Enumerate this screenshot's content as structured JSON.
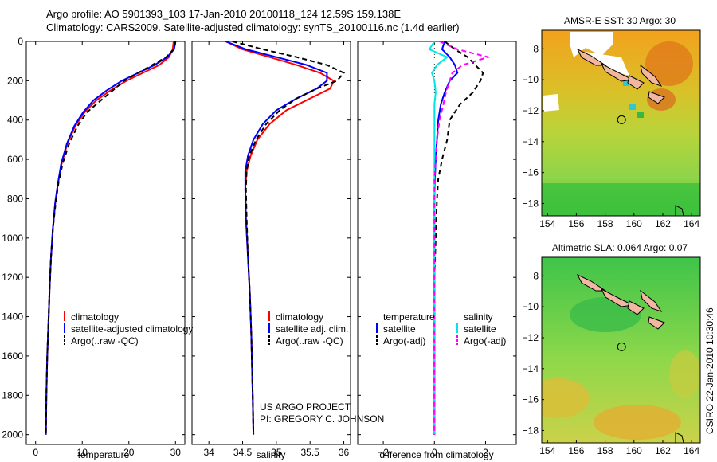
{
  "header": {
    "line1": "Argo profile: AO 5901393_103 17-Jan-2010 20100118_124 12.59S 159.138E",
    "line2": "Climatology: CARS2009. Satellite-adjusted climatology: synTS_20100116.nc (1.4d earlier)"
  },
  "footer": {
    "project_line1": "US ARGO PROJECT",
    "project_line2": "PI: GREGORY C. JOHNSON",
    "stamp": "CSIRO 22-Jan-2010 10:30:46"
  },
  "colors": {
    "climatology": "#ff0000",
    "satellite": "#0000ff",
    "argo": "#000000",
    "sal_satellite": "#00e5e5",
    "sal_argo": "#ff00ff"
  },
  "chart_data": [
    {
      "type": "line",
      "xlabel": "temperature",
      "ylabel": "",
      "xlim": [
        -2,
        32
      ],
      "ylim": [
        0,
        2050
      ],
      "y_reversed": true,
      "xticks": [
        0,
        10,
        20,
        30
      ],
      "yticks": [
        0,
        200,
        400,
        600,
        800,
        1000,
        1200,
        1400,
        1600,
        1800,
        2000
      ],
      "legend": [
        "climatology",
        "satellite-adjusted climatology",
        "Argo(..raw -QC)"
      ],
      "series": [
        {
          "name": "climatology",
          "color": "#ff0000",
          "style": "solid",
          "x": [
            29.6,
            29.4,
            28.6,
            26.5,
            23.0,
            19.5,
            16.0,
            13.0,
            10.5,
            8.5,
            6.8,
            5.6,
            4.8,
            4.2,
            3.7,
            3.3,
            3.0,
            2.8,
            2.5,
            2.3,
            2.2
          ],
          "y": [
            0,
            40,
            80,
            120,
            160,
            200,
            250,
            300,
            360,
            430,
            520,
            620,
            720,
            820,
            950,
            1100,
            1250,
            1400,
            1600,
            1800,
            2000
          ]
        },
        {
          "name": "satellite-adjusted climatology",
          "color": "#0000ff",
          "style": "solid",
          "x": [
            30.0,
            29.7,
            28.2,
            25.5,
            22.0,
            18.5,
            15.2,
            12.4,
            10.2,
            8.3,
            6.7,
            5.5,
            4.8,
            4.2,
            3.7,
            3.3,
            3.0,
            2.8,
            2.5,
            2.3,
            2.2
          ],
          "y": [
            0,
            40,
            80,
            120,
            160,
            200,
            250,
            300,
            360,
            430,
            520,
            620,
            720,
            820,
            950,
            1100,
            1250,
            1400,
            1600,
            1800,
            2000
          ]
        },
        {
          "name": "Argo(..raw -QC)",
          "color": "#000000",
          "style": "dashed",
          "x": [
            30.0,
            29.6,
            28.0,
            25.0,
            22.0,
            19.0,
            16.5,
            14.0,
            11.0,
            9.0,
            7.2,
            5.8,
            4.9,
            4.3,
            3.7,
            3.3,
            3.0,
            2.8,
            2.5,
            2.3,
            2.2
          ],
          "y": [
            0,
            40,
            80,
            120,
            160,
            200,
            250,
            300,
            360,
            430,
            520,
            620,
            720,
            820,
            950,
            1100,
            1250,
            1400,
            1600,
            1800,
            2000
          ]
        }
      ]
    },
    {
      "type": "line",
      "xlabel": "salinity",
      "ylabel": "",
      "xlim": [
        33.75,
        36.1
      ],
      "ylim": [
        0,
        2050
      ],
      "y_reversed": true,
      "xticks": [
        34,
        34.5,
        35,
        35.5,
        36
      ],
      "xticklabels": [
        "34",
        "34.5",
        "35",
        "35.5",
        "36"
      ],
      "legend": [
        "climatology",
        "satellite adj. clim.",
        "Argo(..raw -QC)"
      ],
      "series": [
        {
          "name": "climatology",
          "color": "#ff0000",
          "style": "solid",
          "x": [
            34.25,
            34.5,
            34.9,
            35.3,
            35.65,
            35.85,
            35.8,
            35.5,
            35.15,
            34.9,
            34.72,
            34.62,
            34.56,
            34.54,
            34.55,
            34.58,
            34.61,
            34.63,
            34.65,
            34.66
          ],
          "y": [
            0,
            40,
            80,
            120,
            160,
            200,
            240,
            290,
            350,
            420,
            500,
            580,
            660,
            750,
            900,
            1100,
            1300,
            1500,
            1800,
            2000
          ]
        },
        {
          "name": "satellite adj. clim.",
          "color": "#0000ff",
          "style": "solid",
          "x": [
            34.25,
            34.55,
            35.0,
            35.45,
            35.75,
            35.75,
            35.6,
            35.3,
            35.0,
            34.8,
            34.66,
            34.58,
            34.54,
            34.54,
            34.55,
            34.58,
            34.61,
            34.63,
            34.65,
            34.66
          ],
          "y": [
            0,
            40,
            80,
            120,
            160,
            200,
            240,
            290,
            350,
            420,
            500,
            580,
            660,
            750,
            900,
            1100,
            1300,
            1500,
            1800,
            2000
          ]
        },
        {
          "name": "Argo(..raw -QC)",
          "color": "#000000",
          "style": "dashed",
          "x": [
            34.35,
            34.8,
            35.3,
            35.75,
            36.0,
            35.9,
            35.6,
            35.3,
            35.05,
            34.85,
            34.7,
            34.6,
            34.56,
            34.55,
            34.56,
            34.58,
            34.61,
            34.63,
            34.65,
            34.66
          ],
          "y": [
            0,
            40,
            80,
            120,
            160,
            200,
            240,
            290,
            350,
            420,
            500,
            580,
            660,
            750,
            900,
            1100,
            1300,
            1500,
            1800,
            2000
          ]
        }
      ]
    },
    {
      "type": "line",
      "xlabel": "difference from climatology",
      "ylabel": "",
      "xlim": [
        -3,
        3.2
      ],
      "ylim": [
        0,
        2050
      ],
      "y_reversed": true,
      "xticks": [
        -2,
        0,
        2
      ],
      "legend_groups": [
        {
          "title": "temperature",
          "items": [
            "satellite",
            "Argo(-adj)"
          ]
        },
        {
          "title": "salinity",
          "items": [
            "satellite",
            "Argo(-adj)"
          ]
        }
      ],
      "series": [
        {
          "name": "temperature satellite",
          "color": "#0000ff",
          "style": "solid",
          "x": [
            0.4,
            0.3,
            0.6,
            0.8,
            0.9,
            0.6,
            0.4,
            0.25,
            0.15,
            0.1,
            0.05,
            0.02,
            0.0,
            0.0,
            0.0,
            0.0,
            0.0,
            0.0
          ],
          "y": [
            0,
            40,
            80,
            120,
            160,
            200,
            260,
            320,
            400,
            500,
            600,
            700,
            800,
            1000,
            1200,
            1400,
            1700,
            2000
          ]
        },
        {
          "name": "temperature Argo(-adj)",
          "color": "#000000",
          "style": "dashed",
          "x": [
            0.4,
            0.8,
            1.3,
            1.6,
            1.9,
            1.8,
            1.5,
            1.0,
            0.6,
            0.5,
            0.3,
            0.15,
            0.1,
            0.05,
            0.0,
            0.0,
            0.0,
            0.0
          ],
          "y": [
            0,
            40,
            80,
            120,
            160,
            200,
            260,
            320,
            400,
            500,
            600,
            700,
            800,
            1000,
            1200,
            1400,
            1700,
            2000
          ]
        },
        {
          "name": "salinity satellite",
          "color": "#00e5e5",
          "style": "solid",
          "x": [
            0.0,
            -0.2,
            0.5,
            0.1,
            -0.1,
            0.0,
            0.05,
            0.0,
            0.0,
            0.0,
            0.0,
            0.0,
            0.0,
            0.0,
            0.0,
            0.0,
            0.0,
            0.0
          ],
          "y": [
            0,
            40,
            80,
            120,
            160,
            200,
            260,
            320,
            400,
            500,
            600,
            700,
            800,
            1000,
            1200,
            1400,
            1700,
            2000
          ]
        },
        {
          "name": "salinity Argo(-adj)",
          "color": "#ff00ff",
          "style": "dashed",
          "x": [
            0.2,
            0.9,
            2.1,
            1.1,
            0.7,
            0.6,
            0.45,
            0.35,
            0.2,
            0.1,
            0.05,
            0.0,
            0.0,
            0.0,
            0.0,
            0.0,
            0.0,
            0.0
          ],
          "y": [
            0,
            40,
            80,
            120,
            160,
            200,
            260,
            320,
            400,
            500,
            600,
            700,
            800,
            1000,
            1200,
            1400,
            1700,
            2000
          ]
        }
      ]
    },
    {
      "type": "heatmap",
      "title": "AMSR-E SST: 30 Argo: 30",
      "xlim": [
        153.6,
        164.6
      ],
      "ylim": [
        -18.8,
        -6.8
      ],
      "xticks": [
        154,
        156,
        158,
        160,
        162,
        164
      ],
      "yticks": [
        -8,
        -10,
        -12,
        -14,
        -16,
        -18
      ],
      "float_position": {
        "lon": 159.138,
        "lat": -12.59
      }
    },
    {
      "type": "heatmap",
      "title": "Altimetric SLA: 0.064 Argo: 0.07",
      "xlim": [
        153.6,
        164.6
      ],
      "ylim": [
        -18.8,
        -6.8
      ],
      "xticks": [
        154,
        156,
        158,
        160,
        162,
        164
      ],
      "yticks": [
        -8,
        -10,
        -12,
        -14,
        -16,
        -18
      ],
      "float_position": {
        "lon": 159.138,
        "lat": -12.59
      }
    }
  ]
}
